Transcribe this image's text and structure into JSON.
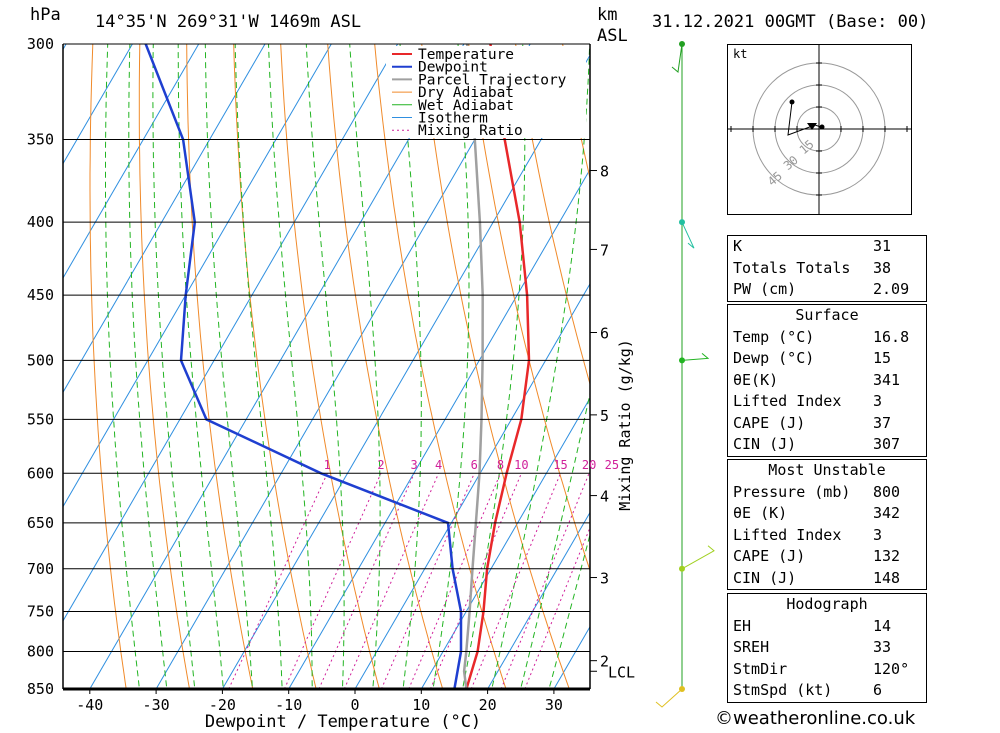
{
  "header": {
    "pressure_unit": "hPa",
    "location": "14°35'N  269°31'W  1469m  ASL",
    "height_unit_1": "km",
    "height_unit_2": "ASL",
    "datetime": "31.12.2021  00GMT  (Base: 00)"
  },
  "chart_data": {
    "type": "line",
    "title": "",
    "xlabel": "Dewpoint / Temperature (°C)",
    "ylabel": "hPa",
    "y2label": "Mixing Ratio (g/kg)",
    "y_scale": "log",
    "ylim": [
      850,
      300
    ],
    "xlim": [
      -45,
      35
    ],
    "x_ticks": [
      -40,
      -30,
      -20,
      -10,
      0,
      10,
      20,
      30
    ],
    "pressure_levels": [
      300,
      350,
      400,
      450,
      500,
      550,
      600,
      650,
      700,
      750,
      800,
      850
    ],
    "km_ticks": [
      {
        "km": 2,
        "p": 812
      },
      {
        "km": 3,
        "p": 710
      },
      {
        "km": 4,
        "p": 622
      },
      {
        "km": 5,
        "p": 546
      },
      {
        "km": 6,
        "p": 478
      },
      {
        "km": 7,
        "p": 418
      },
      {
        "km": 8,
        "p": 368
      }
    ],
    "lcl": {
      "label": "LCL",
      "p": 826
    },
    "mixing_ratio_labels": [
      "1",
      "2",
      "3",
      "4",
      "6",
      "8",
      "10",
      "15",
      "20",
      "25"
    ],
    "mixing_ratio_values": [
      1,
      2,
      3,
      4,
      6,
      8,
      10,
      15,
      20,
      25
    ],
    "legend": [
      "Temperature",
      "Dewpoint",
      "Parcel Trajectory",
      "Dry Adiabat",
      "Wet Adiabat",
      "Isotherm",
      "Mixing Ratio"
    ],
    "legend_position": "top",
    "colors": {
      "temperature": "#e8282a",
      "dewpoint": "#1f3fd0",
      "parcel": "#a0a0a0",
      "dry_adiabat": "#f08a2a",
      "wet_adiabat": "#22b422",
      "isotherm": "#2f8fe0",
      "mixing_ratio": "#d0209a"
    },
    "series": [
      {
        "name": "Temperature",
        "points": [
          [
            850,
            16.8
          ],
          [
            800,
            15.2
          ],
          [
            750,
            12.6
          ],
          [
            700,
            9.4
          ],
          [
            650,
            6.6
          ],
          [
            600,
            4.0
          ],
          [
            550,
            1.5
          ],
          [
            500,
            -2.5
          ],
          [
            450,
            -8.5
          ],
          [
            400,
            -16
          ],
          [
            350,
            -25.5
          ],
          [
            300,
            -36
          ]
        ]
      },
      {
        "name": "Dewpoint",
        "points": [
          [
            850,
            15.0
          ],
          [
            800,
            12.7
          ],
          [
            750,
            9.2
          ],
          [
            700,
            4.2
          ],
          [
            650,
            -0.5
          ],
          [
            600,
            -24
          ],
          [
            550,
            -46
          ],
          [
            500,
            -55
          ],
          [
            450,
            -60
          ],
          [
            400,
            -65
          ],
          [
            350,
            -74
          ],
          [
            300,
            -88
          ]
        ]
      },
      {
        "name": "Parcel Trajectory",
        "points": [
          [
            850,
            16.8
          ],
          [
            826,
            14.9
          ],
          [
            800,
            13.5
          ],
          [
            750,
            10.5
          ],
          [
            700,
            7.2
          ],
          [
            650,
            3.7
          ],
          [
            600,
            -0.1
          ],
          [
            550,
            -4.5
          ],
          [
            500,
            -9.5
          ],
          [
            450,
            -15.2
          ],
          [
            400,
            -22.0
          ],
          [
            350,
            -30.0
          ],
          [
            300,
            -39.5
          ]
        ]
      }
    ],
    "wind_barbs": [
      {
        "p": 300
      },
      {
        "p": 400
      },
      {
        "p": 500
      },
      {
        "p": 700
      },
      {
        "p": 850
      }
    ]
  },
  "hodograph": {
    "unit": "kt",
    "rings": [
      "15",
      "30",
      "45"
    ]
  },
  "indices": [
    {
      "label": "K",
      "value": "31"
    },
    {
      "label": "Totals Totals",
      "value": "38"
    },
    {
      "label": "PW (cm)",
      "value": "2.09"
    }
  ],
  "surface": {
    "title": "Surface",
    "rows": [
      {
        "label": "Temp (°C)",
        "value": "16.8"
      },
      {
        "label": "Dewp (°C)",
        "value": "15"
      },
      {
        "label": "θE(K)",
        "value": "341"
      },
      {
        "label": "Lifted Index",
        "value": "3"
      },
      {
        "label": "CAPE (J)",
        "value": "37"
      },
      {
        "label": "CIN (J)",
        "value": "307"
      }
    ]
  },
  "most_unstable": {
    "title": "Most Unstable",
    "rows": [
      {
        "label": "Pressure (mb)",
        "value": "800"
      },
      {
        "label": "θE (K)",
        "value": "342"
      },
      {
        "label": "Lifted Index",
        "value": "3"
      },
      {
        "label": "CAPE (J)",
        "value": "132"
      },
      {
        "label": "CIN (J)",
        "value": "148"
      }
    ]
  },
  "hodograph_stats": {
    "title": "Hodograph",
    "rows": [
      {
        "label": "EH",
        "value": "14"
      },
      {
        "label": "SREH",
        "value": "33"
      },
      {
        "label": "StmDir",
        "value": "120°"
      },
      {
        "label": "StmSpd (kt)",
        "value": "6"
      }
    ]
  },
  "footer": "©weatheronline.co.uk"
}
